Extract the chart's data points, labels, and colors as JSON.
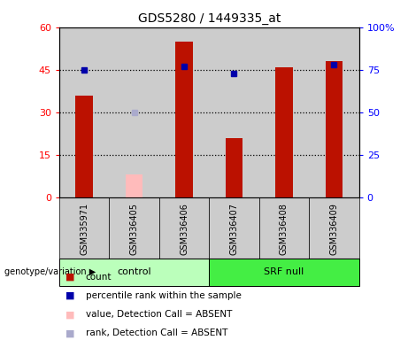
{
  "title": "GDS5280 / 1449335_at",
  "samples": [
    "GSM335971",
    "GSM336405",
    "GSM336406",
    "GSM336407",
    "GSM336408",
    "GSM336409"
  ],
  "count_values": [
    36,
    null,
    55,
    21,
    46,
    48
  ],
  "count_absent_values": [
    null,
    8,
    null,
    null,
    null,
    null
  ],
  "percentile_values": [
    75,
    null,
    77,
    73,
    null,
    78
  ],
  "percentile_absent_values": [
    null,
    50,
    null,
    null,
    null,
    null
  ],
  "bar_color": "#bb1100",
  "bar_absent_color": "#ffbbbb",
  "dot_color": "#0000aa",
  "dot_absent_color": "#aaaacc",
  "control_color": "#bbffbb",
  "srf_color": "#44ee44",
  "ylim_left": [
    0,
    60
  ],
  "ylim_right": [
    0,
    100
  ],
  "yticks_left": [
    0,
    15,
    30,
    45,
    60
  ],
  "yticks_right": [
    0,
    25,
    50,
    75,
    100
  ],
  "yticklabels_left": [
    "0",
    "15",
    "30",
    "45",
    "60"
  ],
  "yticklabels_right": [
    "0",
    "25",
    "50",
    "75",
    "100%"
  ],
  "hlines": [
    15,
    30,
    45
  ],
  "col_bg_color": "#cccccc",
  "plot_bg_color": "#ffffff",
  "background_color": "#ffffff",
  "legend_items": [
    {
      "label": "count",
      "color": "#bb1100"
    },
    {
      "label": "percentile rank within the sample",
      "color": "#0000aa"
    },
    {
      "label": "value, Detection Call = ABSENT",
      "color": "#ffbbbb"
    },
    {
      "label": "rank, Detection Call = ABSENT",
      "color": "#aaaacc"
    }
  ],
  "genotype_label": "genotype/variation"
}
